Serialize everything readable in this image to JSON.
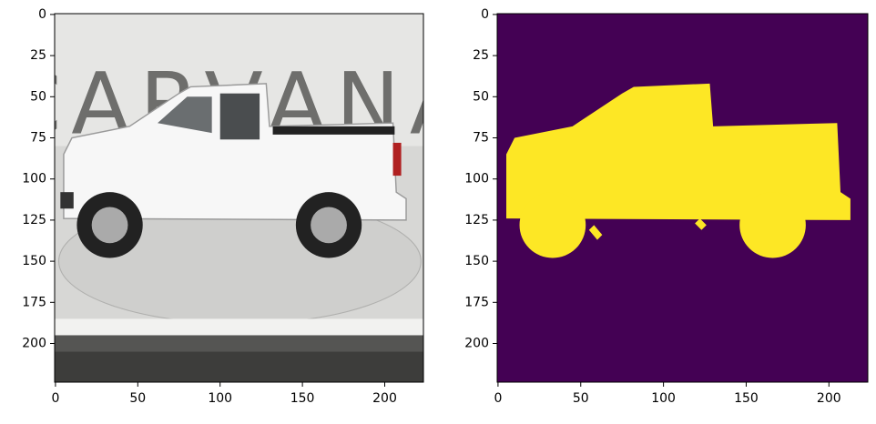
{
  "chart_data": [
    {
      "type": "image",
      "image_text": "CARVANA",
      "xlim": [
        -0.5,
        223.5
      ],
      "ylim": [
        223.5,
        -0.5
      ],
      "xticks": [
        0,
        50,
        100,
        150,
        200
      ],
      "yticks": [
        0,
        25,
        50,
        75,
        100,
        125,
        150,
        175,
        200
      ]
    },
    {
      "type": "mask",
      "colors": [
        "#440154",
        "#fde725"
      ],
      "xlim": [
        -0.5,
        223.5
      ],
      "ylim": [
        223.5,
        -0.5
      ],
      "xticks": [
        0,
        50,
        100,
        150,
        200
      ],
      "yticks": [
        0,
        25,
        50,
        75,
        100,
        125,
        150,
        175,
        200
      ]
    }
  ]
}
